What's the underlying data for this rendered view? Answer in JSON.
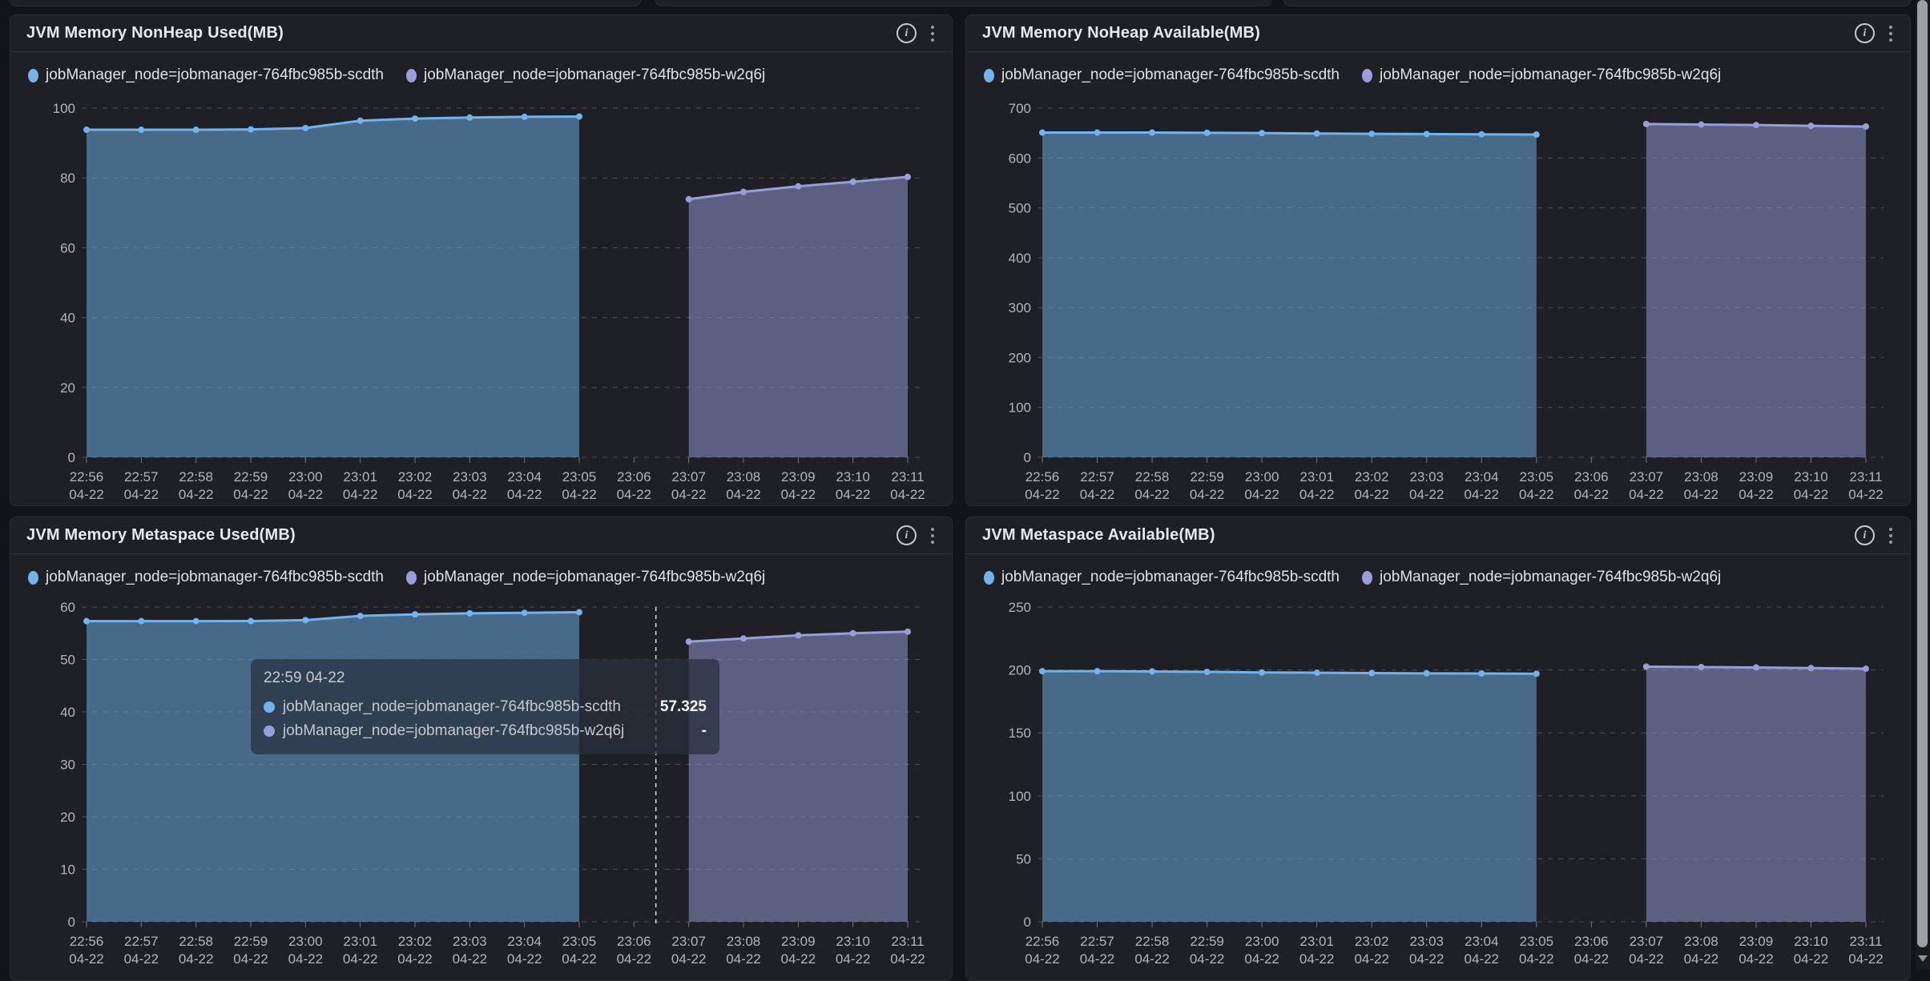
{
  "series": [
    {
      "name": "jobManager_node=jobmanager-764fbc985b-scdth",
      "color": "#6fb3f0"
    },
    {
      "name": "jobManager_node=jobmanager-764fbc985b-w2q6j",
      "color": "#999dde"
    }
  ],
  "chart_data": [
    {
      "type": "area",
      "title": "JVM Memory NonHeap Used(MB)",
      "categories": [
        "22:56",
        "22:57",
        "22:58",
        "22:59",
        "23:00",
        "23:01",
        "23:02",
        "23:03",
        "23:04",
        "23:05",
        "23:06",
        "23:07",
        "23:08",
        "23:09",
        "23:10",
        "23:11"
      ],
      "x_date": "04-22",
      "ylim": [
        0,
        100
      ],
      "ytick_step": 20,
      "grid": "horizontal-dashed",
      "legend_position": "top-left",
      "series": [
        {
          "name": "jobManager_node=jobmanager-764fbc985b-scdth",
          "start_index": 0,
          "values": [
            93.8,
            93.8,
            93.8,
            93.9,
            94.3,
            96.4,
            97.0,
            97.3,
            97.5,
            97.6
          ]
        },
        {
          "name": "jobManager_node=jobmanager-764fbc985b-w2q6j",
          "start_index": 11,
          "values": [
            73.9,
            76.0,
            77.6,
            78.9,
            80.3
          ]
        }
      ]
    },
    {
      "type": "area",
      "title": "JVM Memory NoHeap Available(MB)",
      "categories": [
        "22:56",
        "22:57",
        "22:58",
        "22:59",
        "23:00",
        "23:01",
        "23:02",
        "23:03",
        "23:04",
        "23:05",
        "23:06",
        "23:07",
        "23:08",
        "23:09",
        "23:10",
        "23:11"
      ],
      "x_date": "04-22",
      "ylim": [
        0,
        700
      ],
      "ytick_step": 100,
      "grid": "horizontal-dashed",
      "legend_position": "top-left",
      "series": [
        {
          "name": "jobManager_node=jobmanager-764fbc985b-scdth",
          "start_index": 0,
          "values": [
            651,
            651,
            651,
            650.5,
            650,
            649,
            648.5,
            648,
            647.5,
            647
          ]
        },
        {
          "name": "jobManager_node=jobmanager-764fbc985b-w2q6j",
          "start_index": 11,
          "values": [
            668,
            667,
            666,
            664.5,
            663
          ]
        }
      ]
    },
    {
      "type": "area",
      "title": "JVM Memory Metaspace Used(MB)",
      "categories": [
        "22:56",
        "22:57",
        "22:58",
        "22:59",
        "23:00",
        "23:01",
        "23:02",
        "23:03",
        "23:04",
        "23:05",
        "23:06",
        "23:07",
        "23:08",
        "23:09",
        "23:10",
        "23:11"
      ],
      "x_date": "04-22",
      "ylim": [
        0,
        60
      ],
      "ytick_step": 10,
      "grid": "horizontal-dashed",
      "legend_position": "top-left",
      "series": [
        {
          "name": "jobManager_node=jobmanager-764fbc985b-scdth",
          "start_index": 0,
          "values": [
            57.3,
            57.3,
            57.3,
            57.325,
            57.5,
            58.3,
            58.6,
            58.8,
            58.9,
            59.0
          ]
        },
        {
          "name": "jobManager_node=jobmanager-764fbc985b-w2q6j",
          "start_index": 11,
          "values": [
            53.4,
            54.0,
            54.6,
            55.0,
            55.3
          ]
        }
      ]
    },
    {
      "type": "area",
      "title": "JVM Metaspace Available(MB)",
      "categories": [
        "22:56",
        "22:57",
        "22:58",
        "22:59",
        "23:00",
        "23:01",
        "23:02",
        "23:03",
        "23:04",
        "23:05",
        "23:06",
        "23:07",
        "23:08",
        "23:09",
        "23:10",
        "23:11"
      ],
      "x_date": "04-22",
      "ylim": [
        0,
        250
      ],
      "ytick_step": 50,
      "grid": "horizontal-dashed",
      "legend_position": "top-left",
      "series": [
        {
          "name": "jobManager_node=jobmanager-764fbc985b-scdth",
          "start_index": 0,
          "values": [
            199,
            199,
            198.8,
            198.5,
            198,
            197.8,
            197.5,
            197.3,
            197.2,
            197
          ]
        },
        {
          "name": "jobManager_node=jobmanager-764fbc985b-w2q6j",
          "start_index": 11,
          "values": [
            202.6,
            202.3,
            202,
            201.5,
            201
          ]
        }
      ]
    }
  ],
  "tooltip": {
    "header": "22:59 04-22",
    "rows": [
      {
        "label": "jobManager_node=jobmanager-764fbc985b-scdth",
        "value": "57.325"
      },
      {
        "label": "jobManager_node=jobmanager-764fbc985b-w2q6j",
        "value": "-"
      }
    ],
    "crosshair": {
      "chart_index": 2,
      "x_index": 10.4
    }
  }
}
